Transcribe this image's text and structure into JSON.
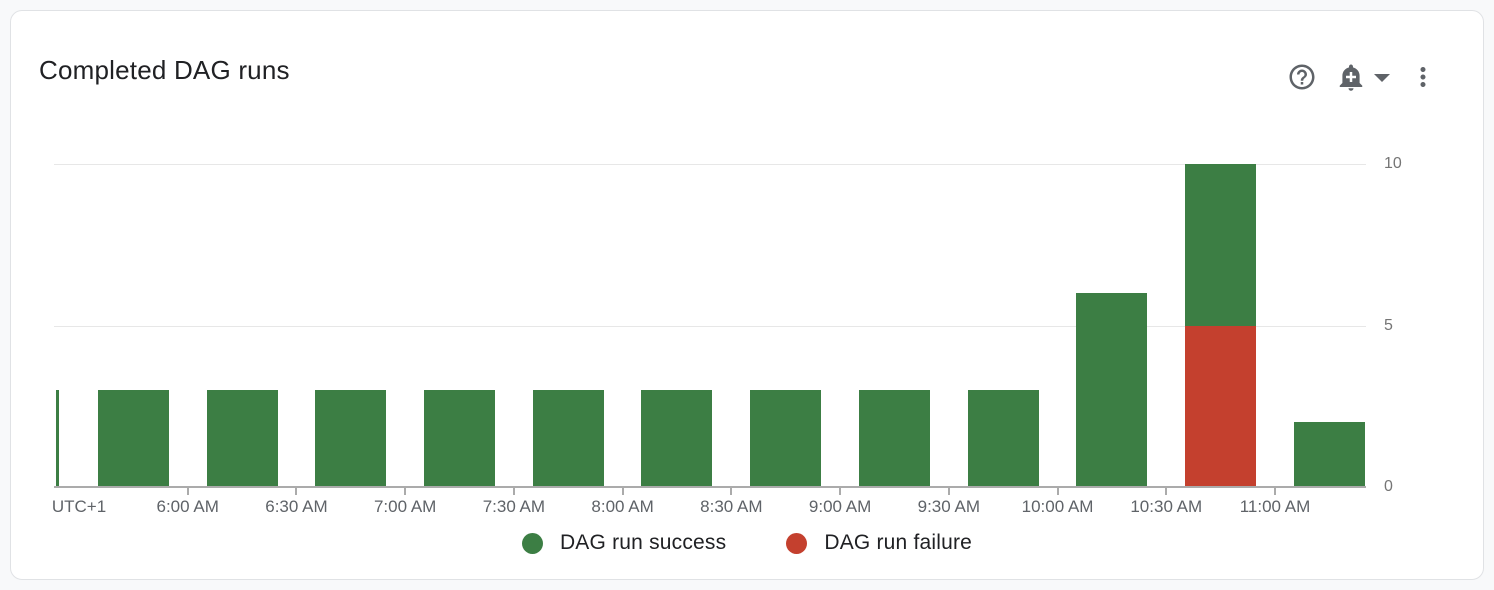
{
  "card": {
    "title": "Completed DAG runs",
    "toolbar_icons": [
      "help-icon",
      "add-alert-bell-icon",
      "dropdown-arrow-icon",
      "kebab-menu-icon"
    ]
  },
  "chart_data": {
    "type": "bar",
    "stacked": true,
    "stack_order": "bottom_to_top",
    "title": "Completed DAG runs",
    "x_axis": {
      "corner_label": "UTC+1",
      "tick_labels": [
        "6:00 AM",
        "6:30 AM",
        "7:00 AM",
        "7:30 AM",
        "8:00 AM",
        "8:30 AM",
        "9:00 AM",
        "9:30 AM",
        "10:00 AM",
        "10:30 AM",
        "11:00 AM"
      ],
      "bars_between_ticks": true
    },
    "y_axis": {
      "tick_labels": [
        0,
        5,
        10
      ],
      "min": 0,
      "max": 10,
      "side": "right"
    },
    "series": [
      {
        "name": "DAG run failure",
        "color": "#c4402e",
        "values": [
          0,
          0,
          0,
          0,
          0,
          0,
          0,
          0,
          0,
          0,
          5,
          0
        ]
      },
      {
        "name": "DAG run success",
        "color": "#3c7e44",
        "values": [
          3,
          3,
          3,
          3,
          3,
          3,
          3,
          3,
          3,
          6,
          5,
          2
        ]
      }
    ],
    "left_edge_clipped_bar": {
      "series": "DAG run success",
      "value": 3
    },
    "legend": [
      {
        "label": "DAG run success",
        "color": "#3c7e44"
      },
      {
        "label": "DAG run failure",
        "color": "#c4402e"
      }
    ],
    "legend_position": "bottom-center",
    "grid": "horizontal"
  },
  "colors": {
    "success": "#3c7e44",
    "failure": "#c4402e",
    "axis_line": "#ababab",
    "gridline": "#e7e7e7",
    "x_label": "#5f6368",
    "y_label": "#757575",
    "title_text": "#202124",
    "icon": "#5f6368",
    "card_border": "#e0e2e5",
    "page_background": "#f8f9fa"
  }
}
